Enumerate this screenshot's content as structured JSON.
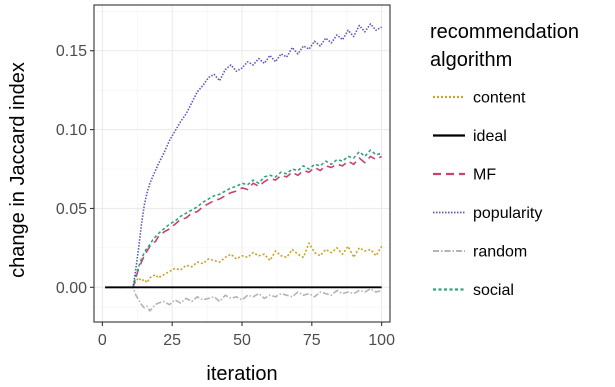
{
  "chart_data": {
    "type": "line",
    "xlabel": "iteration",
    "ylabel": "change in Jaccard index",
    "xlim": [
      -3,
      103
    ],
    "ylim": [
      -0.022,
      0.179
    ],
    "x_ticks": [
      0,
      25,
      50,
      75,
      100
    ],
    "x_tick_labels": [
      "0",
      "25",
      "50",
      "75",
      "100"
    ],
    "y_ticks": [
      0.0,
      0.05,
      0.1,
      0.15
    ],
    "y_tick_labels": [
      "0.00",
      "0.05",
      "0.10",
      "0.15"
    ],
    "grid": true,
    "legend": {
      "title": "recommendation algorithm",
      "title_lines": [
        "recommendation",
        "algorithm"
      ],
      "placement": "right"
    },
    "x": [
      1,
      2,
      3,
      4,
      5,
      6,
      7,
      8,
      9,
      10,
      11,
      12,
      13,
      14,
      15,
      16,
      17,
      18,
      19,
      20,
      22,
      24,
      26,
      28,
      30,
      32,
      34,
      36,
      38,
      40,
      42,
      44,
      46,
      48,
      50,
      52,
      54,
      56,
      58,
      60,
      62,
      64,
      66,
      68,
      70,
      72,
      74,
      76,
      78,
      80,
      82,
      84,
      86,
      88,
      90,
      92,
      94,
      96,
      98,
      100
    ],
    "series": [
      {
        "name": "content",
        "color": "#c9a227",
        "dash": "2,2",
        "values": [
          0,
          0,
          0,
          0,
          0,
          0,
          0,
          0,
          0,
          0,
          0,
          0.004,
          0.006,
          0.004,
          0.005,
          0.003,
          0.006,
          0.007,
          0.008,
          0.006,
          0.008,
          0.01,
          0.012,
          0.011,
          0.014,
          0.013,
          0.016,
          0.015,
          0.018,
          0.017,
          0.016,
          0.019,
          0.021,
          0.018,
          0.02,
          0.019,
          0.022,
          0.02,
          0.021,
          0.017,
          0.023,
          0.02,
          0.019,
          0.024,
          0.021,
          0.019,
          0.028,
          0.022,
          0.02,
          0.024,
          0.022,
          0.025,
          0.021,
          0.026,
          0.019,
          0.025,
          0.023,
          0.024,
          0.02,
          0.026
        ]
      },
      {
        "name": "ideal",
        "color": "#000000",
        "dash": "",
        "values": [
          0,
          0,
          0,
          0,
          0,
          0,
          0,
          0,
          0,
          0,
          0,
          0,
          0,
          0,
          0,
          0,
          0,
          0,
          0,
          0,
          0,
          0,
          0,
          0,
          0,
          0,
          0,
          0,
          0,
          0,
          0,
          0,
          0,
          0,
          0,
          0,
          0,
          0,
          0,
          0,
          0,
          0,
          0,
          0,
          0,
          0,
          0,
          0,
          0,
          0,
          0,
          0,
          0,
          0,
          0,
          0,
          0,
          0,
          0,
          0
        ]
      },
      {
        "name": "MF",
        "color": "#c94370",
        "dash": "8,5",
        "values": [
          0,
          0,
          0,
          0,
          0,
          0,
          0,
          0,
          0,
          0,
          0,
          0.006,
          0.012,
          0.016,
          0.02,
          0.023,
          0.026,
          0.028,
          0.029,
          0.032,
          0.035,
          0.037,
          0.04,
          0.043,
          0.044,
          0.047,
          0.048,
          0.051,
          0.053,
          0.055,
          0.056,
          0.058,
          0.06,
          0.061,
          0.063,
          0.062,
          0.066,
          0.064,
          0.067,
          0.069,
          0.068,
          0.071,
          0.07,
          0.073,
          0.071,
          0.074,
          0.073,
          0.076,
          0.074,
          0.077,
          0.076,
          0.078,
          0.077,
          0.08,
          0.078,
          0.082,
          0.079,
          0.083,
          0.081,
          0.083
        ]
      },
      {
        "name": "popularity",
        "color": "#5b55c2",
        "dash": "1.5,1.5",
        "values": [
          0,
          0,
          0,
          0,
          0,
          0,
          0,
          0,
          0,
          0,
          0,
          0.012,
          0.025,
          0.04,
          0.052,
          0.06,
          0.066,
          0.07,
          0.074,
          0.078,
          0.085,
          0.093,
          0.099,
          0.105,
          0.11,
          0.117,
          0.124,
          0.128,
          0.133,
          0.135,
          0.131,
          0.138,
          0.141,
          0.137,
          0.139,
          0.143,
          0.141,
          0.145,
          0.142,
          0.147,
          0.143,
          0.148,
          0.146,
          0.152,
          0.148,
          0.153,
          0.151,
          0.156,
          0.153,
          0.158,
          0.155,
          0.16,
          0.157,
          0.163,
          0.159,
          0.166,
          0.162,
          0.167,
          0.163,
          0.165
        ]
      },
      {
        "name": "random",
        "color": "#b3b3b3",
        "dash": "6,2,1.5,2",
        "values": [
          0,
          0,
          0,
          0,
          0,
          0,
          0,
          0,
          0,
          0,
          0,
          -0.005,
          -0.008,
          -0.011,
          -0.013,
          -0.012,
          -0.015,
          -0.013,
          -0.011,
          -0.01,
          -0.009,
          -0.011,
          -0.008,
          -0.01,
          -0.007,
          -0.009,
          -0.006,
          -0.008,
          -0.007,
          -0.006,
          -0.009,
          -0.005,
          -0.007,
          -0.006,
          -0.008,
          -0.005,
          -0.006,
          -0.004,
          -0.007,
          -0.005,
          -0.006,
          -0.004,
          -0.005,
          -0.006,
          -0.003,
          -0.005,
          -0.004,
          -0.006,
          -0.003,
          -0.004,
          -0.005,
          -0.002,
          -0.004,
          -0.003,
          -0.004,
          -0.002,
          -0.003,
          -0.001,
          -0.003,
          -0.002
        ]
      },
      {
        "name": "social",
        "color": "#2fa37a",
        "dash": "3,2.5",
        "values": [
          0,
          0,
          0,
          0,
          0,
          0,
          0,
          0,
          0,
          0,
          0,
          0.007,
          0.013,
          0.018,
          0.022,
          0.025,
          0.027,
          0.03,
          0.032,
          0.034,
          0.037,
          0.04,
          0.042,
          0.045,
          0.047,
          0.049,
          0.051,
          0.054,
          0.056,
          0.058,
          0.059,
          0.061,
          0.063,
          0.064,
          0.066,
          0.065,
          0.068,
          0.066,
          0.07,
          0.071,
          0.07,
          0.073,
          0.072,
          0.075,
          0.074,
          0.077,
          0.075,
          0.078,
          0.077,
          0.08,
          0.078,
          0.081,
          0.08,
          0.083,
          0.082,
          0.086,
          0.083,
          0.087,
          0.084,
          0.085
        ]
      }
    ]
  }
}
